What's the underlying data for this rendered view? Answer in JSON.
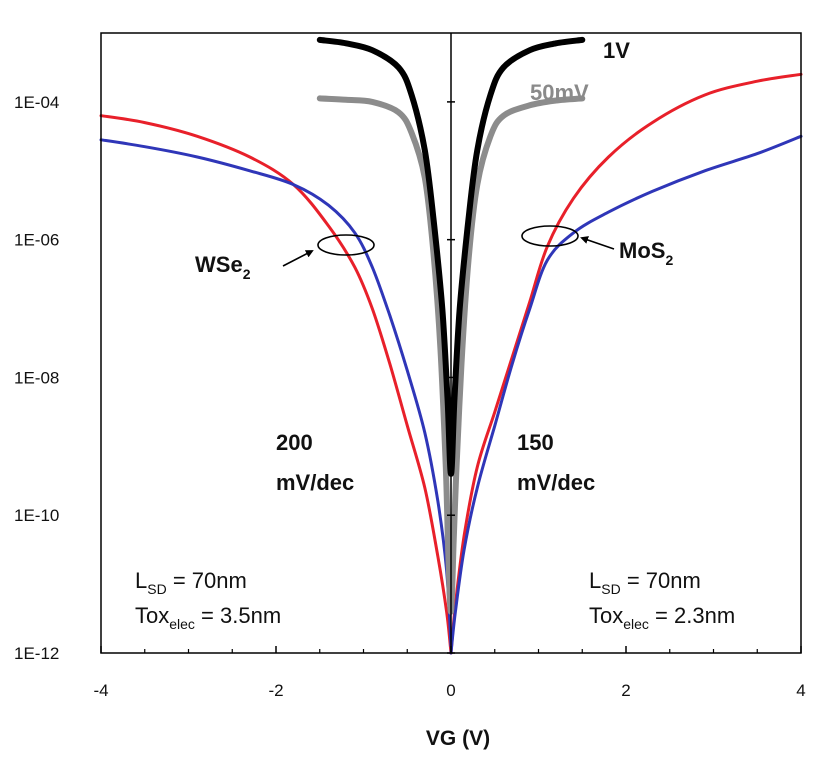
{
  "chart_data": {
    "type": "line",
    "title": "",
    "xlabel": "VG (V)",
    "ylabel": "",
    "xlim": [
      -4,
      4
    ],
    "ylim_log10": [
      -12,
      -3
    ],
    "y_scale": "log",
    "x_ticks": [
      "-4",
      "-2",
      "0",
      "2",
      "4"
    ],
    "x_tick_values": [
      -4,
      -2,
      0,
      2,
      4
    ],
    "y_ticks": [
      "1E-12",
      "1E-10",
      "1E-08",
      "1E-06",
      "1E-04"
    ],
    "y_tick_exponents": [
      -12,
      -10,
      -8,
      -6,
      -4
    ],
    "grid": false,
    "colors": {
      "red": "#e8202a",
      "blue": "#2f36b8",
      "black": "#000000",
      "gray": "#8c8c8c"
    },
    "series": [
      {
        "name": "MoS2",
        "color": "#e8202a",
        "x": [
          0,
          0.05,
          0.15,
          0.3,
          0.5,
          0.7,
          0.9,
          1.1,
          1.4,
          1.8,
          2.3,
          2.9,
          3.5,
          4.0
        ],
        "log10_y": [
          -12,
          -11.3,
          -10.3,
          -9.3,
          -8.5,
          -7.7,
          -6.9,
          -6.1,
          -5.4,
          -4.8,
          -4.3,
          -3.9,
          -3.7,
          -3.6
        ]
      },
      {
        "name": "MoS2",
        "color": "#2f36b8",
        "x": [
          0,
          0.05,
          0.15,
          0.3,
          0.5,
          0.7,
          0.9,
          1.1,
          1.4,
          1.8,
          2.3,
          2.9,
          3.5,
          4.0
        ],
        "log10_y": [
          -12,
          -11.4,
          -10.5,
          -9.6,
          -8.7,
          -7.8,
          -7.0,
          -6.3,
          -5.9,
          -5.6,
          -5.3,
          -5.0,
          -4.75,
          -4.5
        ]
      },
      {
        "name": "WSe2",
        "color": "#e8202a",
        "x": [
          -4.0,
          -3.5,
          -2.9,
          -2.3,
          -1.8,
          -1.4,
          -1.1,
          -0.9,
          -0.7,
          -0.5,
          -0.3,
          -0.15,
          -0.05,
          0
        ],
        "log10_y": [
          -4.2,
          -4.3,
          -4.5,
          -4.8,
          -5.2,
          -5.8,
          -6.4,
          -7.0,
          -7.8,
          -8.7,
          -9.6,
          -10.6,
          -11.4,
          -12
        ]
      },
      {
        "name": "WSe2",
        "color": "#2f36b8",
        "x": [
          -4.0,
          -3.5,
          -2.9,
          -2.3,
          -1.8,
          -1.4,
          -1.1,
          -0.9,
          -0.7,
          -0.5,
          -0.3,
          -0.15,
          -0.05,
          0
        ],
        "log10_y": [
          -4.55,
          -4.65,
          -4.8,
          -5.0,
          -5.2,
          -5.5,
          -5.9,
          -6.4,
          -7.1,
          -7.9,
          -8.8,
          -9.8,
          -10.8,
          -11.9
        ]
      },
      {
        "name": "1V",
        "color": "#000000",
        "x": [
          -1.5,
          -1.2,
          -0.9,
          -0.6,
          -0.45,
          -0.3,
          -0.2,
          -0.1,
          -0.04,
          0,
          0.04,
          0.1,
          0.2,
          0.3,
          0.45,
          0.6,
          0.9,
          1.2,
          1.5
        ],
        "log10_y": [
          -3.1,
          -3.15,
          -3.25,
          -3.5,
          -3.9,
          -4.7,
          -5.7,
          -7.0,
          -8.3,
          -9.4,
          -8.3,
          -7.0,
          -5.7,
          -4.7,
          -3.9,
          -3.5,
          -3.25,
          -3.15,
          -3.1
        ]
      },
      {
        "name": "50mV",
        "color": "#8c8c8c",
        "x": [
          -1.5,
          -1.2,
          -0.9,
          -0.6,
          -0.45,
          -0.3,
          -0.2,
          -0.12,
          -0.06,
          -0.03,
          0,
          0.03,
          0.06,
          0.12,
          0.2,
          0.3,
          0.45,
          0.6,
          0.9,
          1.2,
          1.5
        ],
        "log10_y": [
          -3.95,
          -3.97,
          -4.0,
          -4.15,
          -4.45,
          -5.1,
          -6.2,
          -7.6,
          -9.3,
          -10.6,
          -11.4,
          -10.4,
          -9.4,
          -7.8,
          -6.3,
          -5.2,
          -4.5,
          -4.2,
          -4.05,
          -3.98,
          -3.95
        ]
      }
    ],
    "annotations": {
      "v1": "1V",
      "v50": "50mV",
      "wse2_main": "WSe",
      "wse2_sub": "2",
      "mos2_main": "MoS",
      "mos2_sub": "2",
      "ss_left_line1": "200",
      "ss_left_line2": "mV/dec",
      "ss_right_line1": "150",
      "ss_right_line2": "mV/dec",
      "left_lsd_main": "L",
      "left_lsd_sub": "SD",
      "left_lsd_val": " = 70nm",
      "left_tox_main": "Tox",
      "left_tox_sub": "elec",
      "left_tox_val": " = 3.5nm",
      "right_lsd_main": "L",
      "right_lsd_sub": "SD",
      "right_lsd_val": " = 70nm",
      "right_tox_main": "Tox",
      "right_tox_sub": "elec",
      "right_tox_val": " = 2.3nm"
    }
  }
}
